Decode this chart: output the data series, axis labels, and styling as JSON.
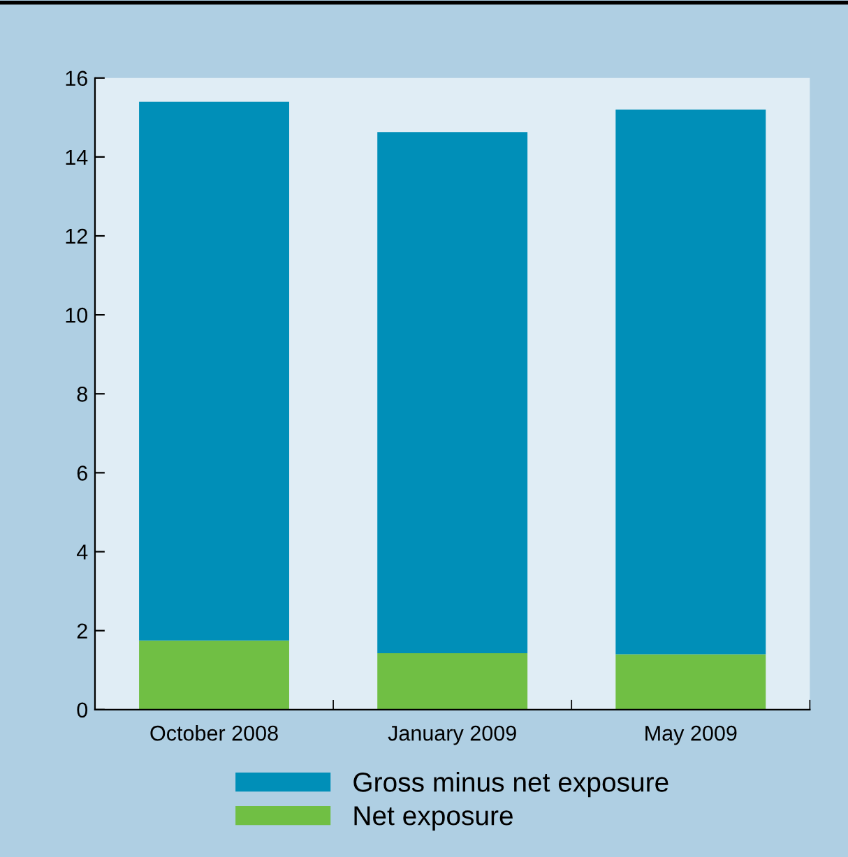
{
  "chart_data": {
    "type": "bar",
    "stacked": true,
    "categories": [
      "October 2008",
      "January 2009",
      "May 2009"
    ],
    "series": [
      {
        "name": "Net exposure",
        "color": "#70bf44",
        "values": [
          1.75,
          1.43,
          1.4
        ]
      },
      {
        "name": "Gross minus net exposure",
        "color": "#008fb8",
        "values": [
          13.65,
          13.2,
          13.8
        ]
      }
    ],
    "ylim": [
      0,
      16
    ],
    "yticks": [
      0,
      2,
      4,
      6,
      8,
      10,
      12,
      14,
      16
    ],
    "grid": false,
    "legend": "bottom"
  }
}
